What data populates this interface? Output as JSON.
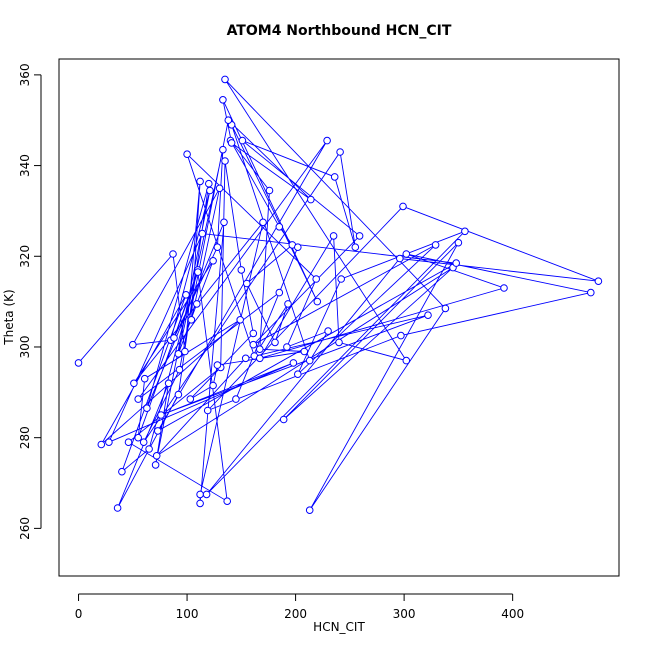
{
  "chart_data": {
    "type": "line",
    "title": "ATOM4 Northbound HCN_CIT",
    "xlabel": "HCN_CIT",
    "ylabel": "Theta (K)",
    "xlim": [
      -18,
      498
    ],
    "ylim": [
      249.5,
      363.5
    ],
    "xticks": [
      0,
      100,
      200,
      300,
      400
    ],
    "yticks": [
      260,
      280,
      300,
      320,
      340,
      360
    ],
    "series_color": "#0000ff",
    "marker": "open-circle",
    "grid": false,
    "series": [
      {
        "x": [
          0,
          87,
          98,
          112,
          104,
          130,
          50,
          85,
          121,
          71,
          83,
          36,
          92,
          120,
          63,
          134,
          112,
          112,
          170,
          51,
          124,
          109,
          92,
          133,
          128,
          88,
          110,
          65,
          40,
          99,
          21,
          149,
          61,
          55,
          110,
          137,
          46,
          131,
          135,
          150,
          161,
          103,
          124,
          128,
          208,
          167,
          176,
          140,
          185,
          197,
          155,
          181,
          193,
          162,
          100,
          219,
          192,
          230,
          213,
          141,
          220,
          133,
          141,
          214,
          138,
          93,
          60,
          241,
          255,
          236,
          151,
          259,
          161,
          329,
          202,
          242,
          356,
          118,
          296,
          479,
          299,
          119,
          297,
          472,
          302,
          392,
          167,
          235,
          240,
          302,
          135,
          338,
          213,
          350,
          189,
          345,
          72,
          154,
          322,
          76,
          198,
          28,
          114,
          348,
          73,
          229,
          55,
          185,
          202,
          145
        ],
        "y": [
          296.5,
          320.5,
          299,
          336.5,
          306,
          335,
          300.5,
          301.5,
          334.5,
          274,
          292,
          264.5,
          289.5,
          336,
          286.5,
          327.5,
          265.5,
          267.5,
          327.5,
          292,
          319,
          309.5,
          298.5,
          343.5,
          322,
          302,
          317,
          277.5,
          272.5,
          311.5,
          278.5,
          306,
          293,
          280,
          316.5,
          266,
          279,
          295.5,
          341,
          317,
          303,
          288.5,
          291.5,
          296,
          299,
          299.5,
          334.5,
          345.5,
          326.5,
          322.5,
          314,
          301,
          309.5,
          298,
          342.5,
          315,
          300,
          303.5,
          297,
          349,
          310,
          354.5,
          345,
          332.5,
          350,
          295,
          279,
          343,
          322,
          337.5,
          345.5,
          324.5,
          300.5,
          322.5,
          294,
          315,
          325.5,
          267.5,
          319.5,
          314.5,
          331,
          286,
          302.5,
          312,
          320.5,
          313,
          297.5,
          324.5,
          301,
          297,
          359,
          308.5,
          264,
          323,
          284,
          317.5,
          276,
          297.5,
          307,
          285,
          296.5,
          279,
          325,
          318.5,
          281.5,
          345.5,
          288.5,
          312,
          322,
          288.5
        ]
      }
    ]
  }
}
